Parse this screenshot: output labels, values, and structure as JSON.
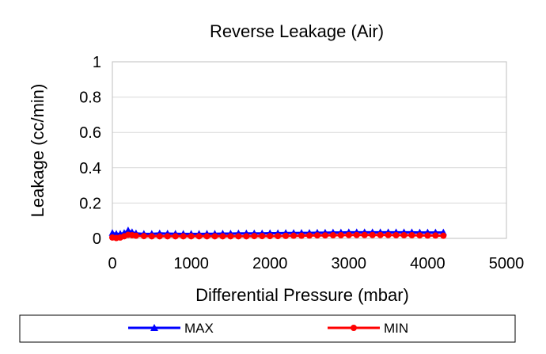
{
  "chart_data": {
    "type": "line",
    "title": "Reverse Leakage (Air)",
    "xlabel": "Differential Pressure (mbar)",
    "ylabel": "Leakage (cc/min)",
    "xlim": [
      0,
      5000
    ],
    "ylim": [
      0,
      1
    ],
    "x_ticks": [
      "0",
      "1000",
      "2000",
      "3000",
      "4000",
      "5000"
    ],
    "y_ticks": [
      "0",
      "0.2",
      "0.4",
      "0.6",
      "0.8",
      "1"
    ],
    "grid": {
      "horizontal": true,
      "vertical": false
    },
    "legend_position": "bottom",
    "series": [
      {
        "name": "MAX",
        "color": "#0000ff",
        "marker": "triangle",
        "x": [
          0,
          50,
          100,
          150,
          200,
          250,
          300,
          400,
          500,
          600,
          700,
          800,
          900,
          1000,
          1100,
          1200,
          1300,
          1400,
          1500,
          1600,
          1700,
          1800,
          1900,
          2000,
          2100,
          2200,
          2300,
          2400,
          2500,
          2600,
          2700,
          2800,
          2900,
          3000,
          3100,
          3200,
          3300,
          3400,
          3500,
          3600,
          3700,
          3800,
          3900,
          4000,
          4100,
          4200
        ],
        "y": [
          0.03,
          0.025,
          0.025,
          0.03,
          0.045,
          0.035,
          0.028,
          0.025,
          0.025,
          0.028,
          0.027,
          0.026,
          0.025,
          0.025,
          0.025,
          0.026,
          0.026,
          0.027,
          0.027,
          0.028,
          0.028,
          0.028,
          0.028,
          0.029,
          0.029,
          0.03,
          0.03,
          0.031,
          0.031,
          0.032,
          0.032,
          0.033,
          0.033,
          0.034,
          0.034,
          0.034,
          0.034,
          0.034,
          0.034,
          0.034,
          0.034,
          0.034,
          0.033,
          0.033,
          0.033,
          0.033
        ]
      },
      {
        "name": "MIN",
        "color": "#ff0000",
        "marker": "circle",
        "x": [
          0,
          50,
          100,
          150,
          200,
          250,
          300,
          400,
          500,
          600,
          700,
          800,
          900,
          1000,
          1100,
          1200,
          1300,
          1400,
          1500,
          1600,
          1700,
          1800,
          1900,
          2000,
          2100,
          2200,
          2300,
          2400,
          2500,
          2600,
          2700,
          2800,
          2900,
          3000,
          3100,
          3200,
          3300,
          3400,
          3500,
          3600,
          3700,
          3800,
          3900,
          4000,
          4100,
          4200
        ],
        "y": [
          0.005,
          0.002,
          0.005,
          0.012,
          0.02,
          0.018,
          0.015,
          0.013,
          0.012,
          0.012,
          0.012,
          0.012,
          0.012,
          0.012,
          0.012,
          0.012,
          0.012,
          0.012,
          0.012,
          0.012,
          0.012,
          0.013,
          0.013,
          0.013,
          0.013,
          0.014,
          0.015,
          0.015,
          0.016,
          0.017,
          0.017,
          0.018,
          0.018,
          0.019,
          0.019,
          0.019,
          0.019,
          0.019,
          0.019,
          0.018,
          0.018,
          0.018,
          0.017,
          0.016,
          0.016,
          0.015
        ]
      }
    ]
  }
}
